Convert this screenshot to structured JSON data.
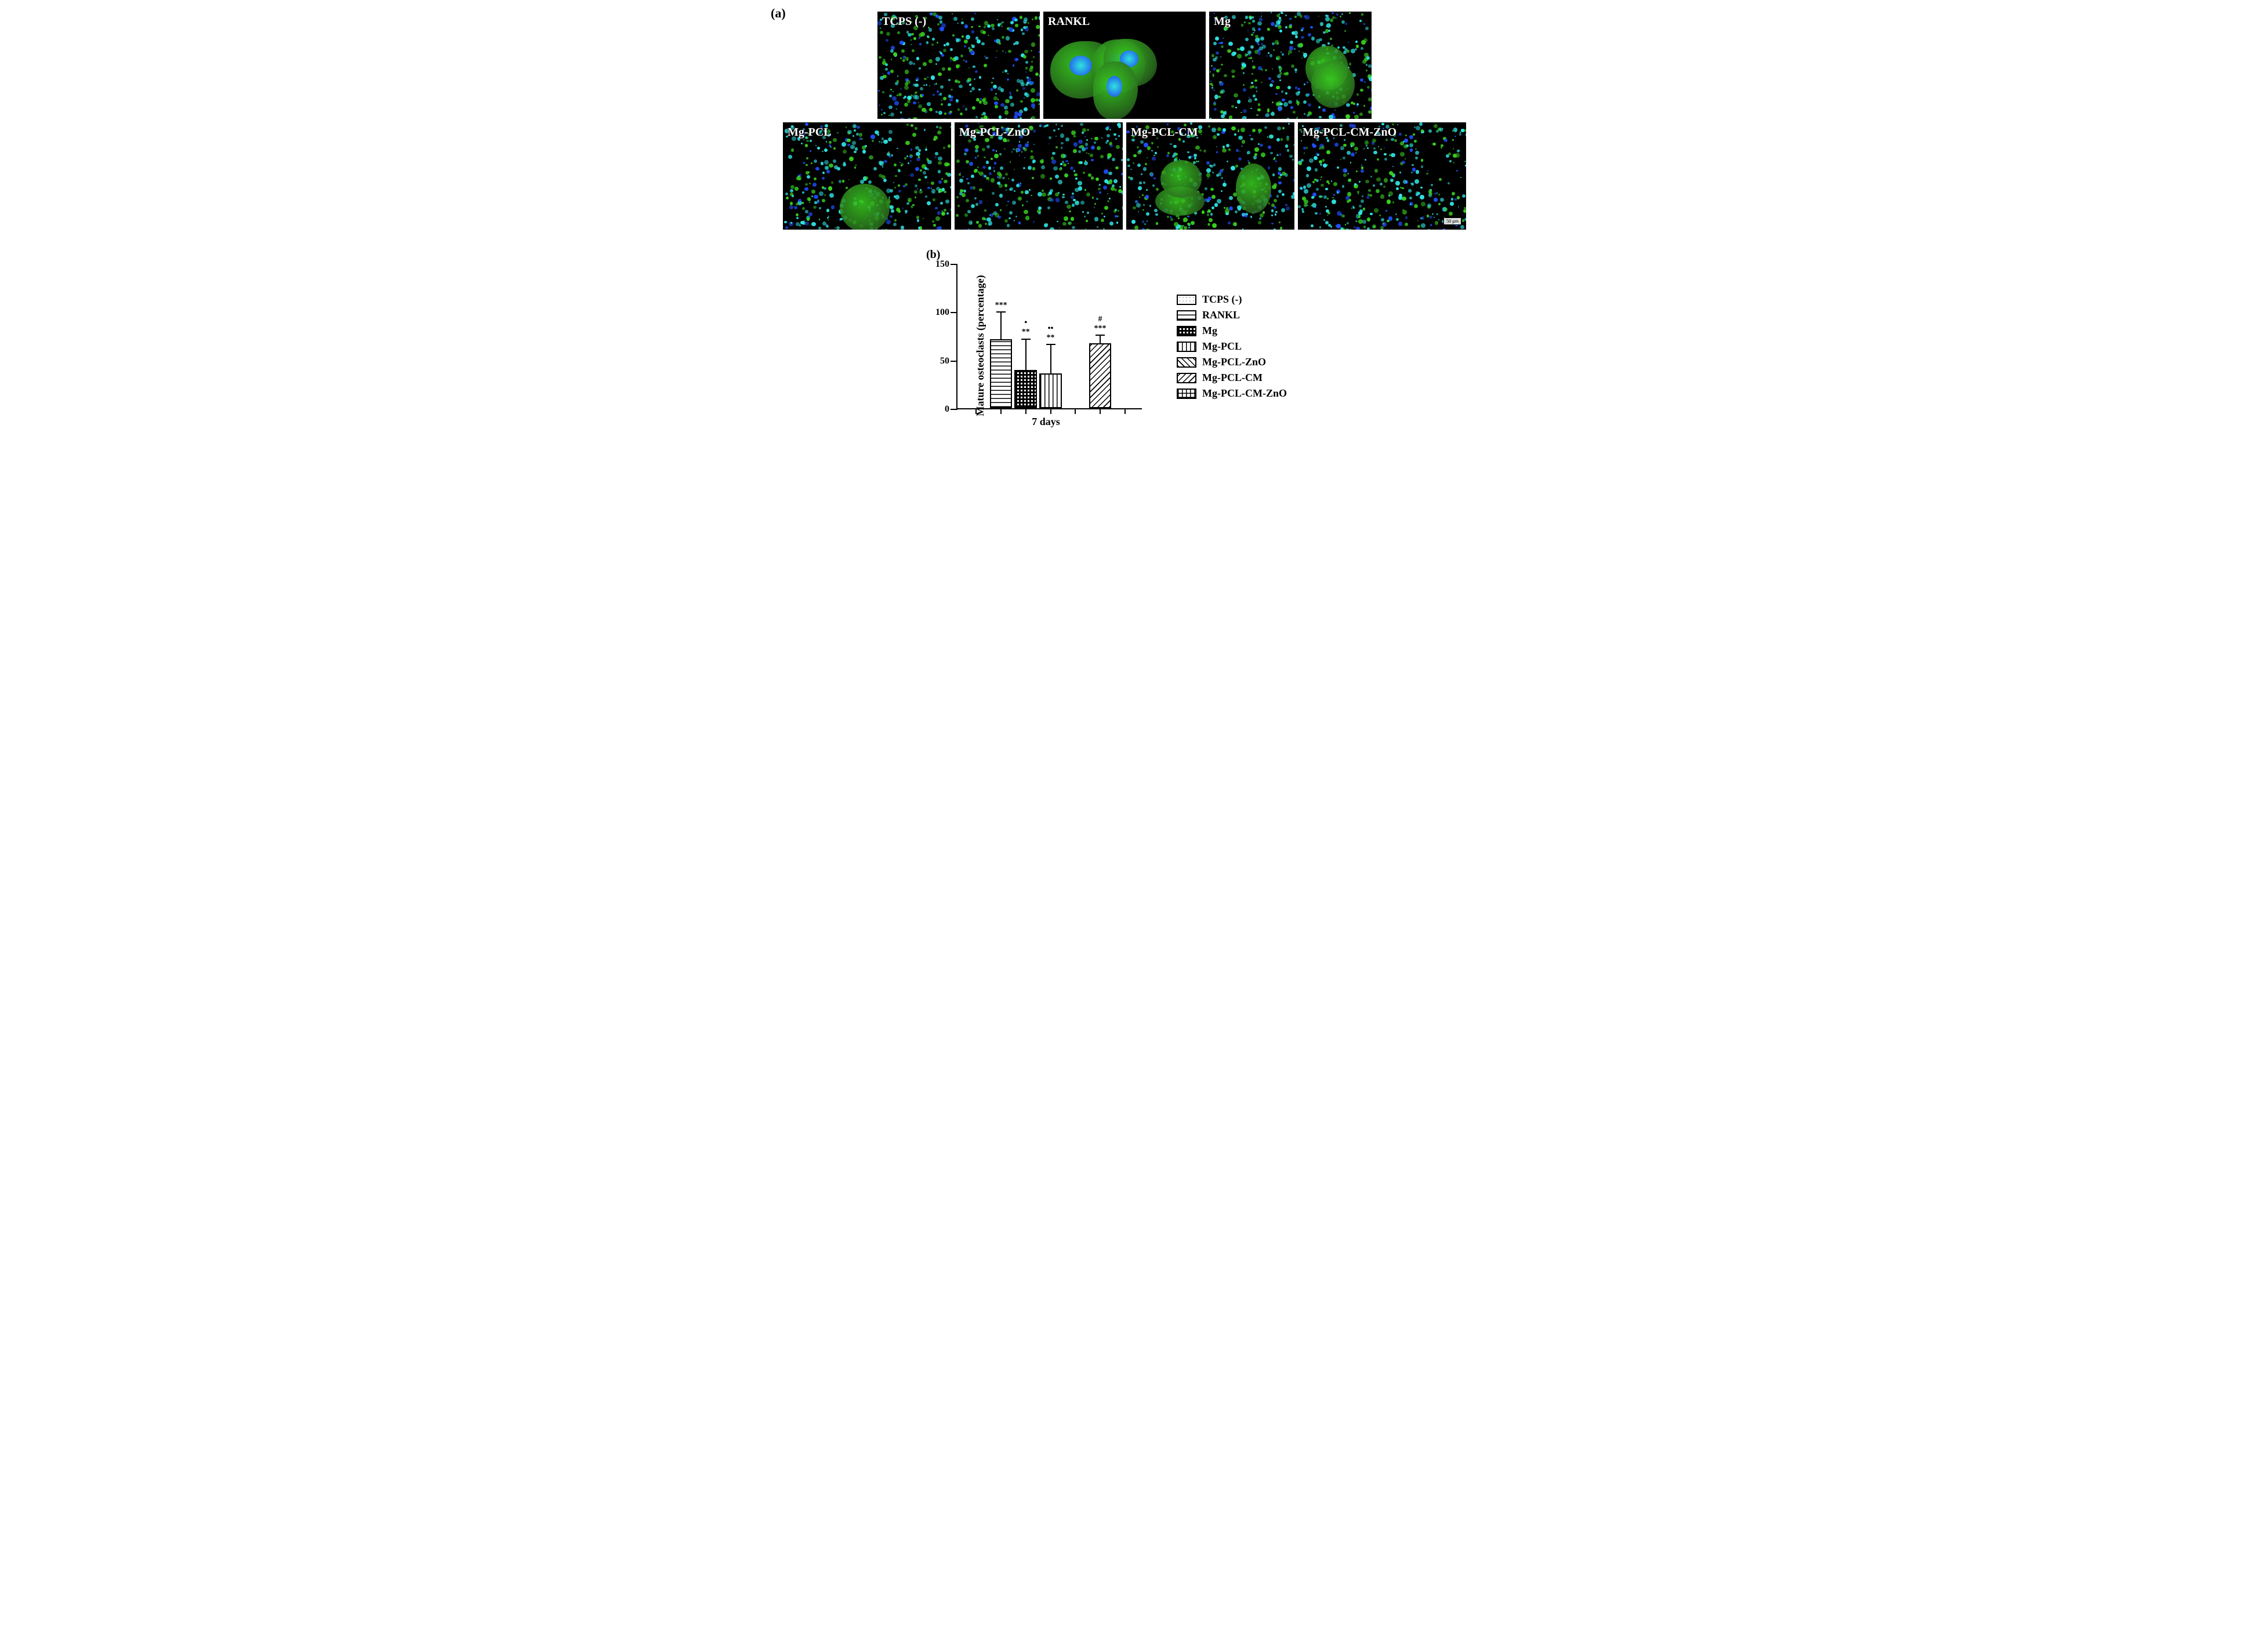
{
  "panelA": {
    "label": "(a)",
    "tiles_row1": [
      {
        "label": "TCPS (-)",
        "style": "dense"
      },
      {
        "label": "RANKL",
        "style": "sparse-big"
      },
      {
        "label": "Mg",
        "style": "dense-mix"
      }
    ],
    "tiles_row2": [
      {
        "label": "Mg-PCL",
        "style": "dense-blob"
      },
      {
        "label": "Mg-PCL-ZnO",
        "style": "dense"
      },
      {
        "label": "Mg-PCL-CM",
        "style": "dense-big"
      },
      {
        "label": "Mg-PCL-CM-ZnO",
        "style": "dense"
      }
    ],
    "scalebar_text": "50 µm",
    "cell_colors": {
      "bg": "#000000",
      "green": "#38d01f",
      "cyan": "#2fe5e5",
      "blue": "#2050ff",
      "dark_green": "#2a6a1e"
    }
  },
  "panelB": {
    "label": "(b)",
    "chart": {
      "type": "bar",
      "y_title": "Mature osteoclasts (percentage)",
      "x_title": "7 days",
      "ylim": [
        0,
        150
      ],
      "yticks": [
        0,
        50,
        100,
        150
      ],
      "ytick_step": 50,
      "categories": [
        "TCPS (-)",
        "RANKL",
        "Mg",
        "Mg-PCL",
        "Mg-PCL-ZnO",
        "Mg-PCL-CM",
        "Mg-PCL-CM-ZnO"
      ],
      "values": [
        0,
        72,
        40,
        36,
        0,
        68,
        0
      ],
      "errors": [
        0,
        28,
        32,
        30,
        0,
        8,
        0
      ],
      "sig_top": [
        "",
        "",
        "•",
        "••",
        "",
        "#",
        ""
      ],
      "sig_bottom": [
        "",
        "***",
        "**",
        "**",
        "",
        "***",
        ""
      ],
      "patterns": [
        "pat-dots",
        "pat-hstripe",
        "pat-checker",
        "pat-vstripe",
        "pat-diag",
        "pat-diag2",
        "pat-grid"
      ],
      "title_fontsize": 18,
      "label_fontsize": 16,
      "background_color": "#ffffff",
      "axis_color": "#000000",
      "bar_border_color": "#000000",
      "bar_width": 0.9
    },
    "legend": [
      {
        "label": "TCPS (-)",
        "pattern": "pat-dots"
      },
      {
        "label": "RANKL",
        "pattern": "pat-hstripe"
      },
      {
        "label": "Mg",
        "pattern": "pat-checker"
      },
      {
        "label": "Mg-PCL",
        "pattern": "pat-vstripe"
      },
      {
        "label": "Mg-PCL-ZnO",
        "pattern": "pat-diag"
      },
      {
        "label": "Mg-PCL-CM",
        "pattern": "pat-diag2"
      },
      {
        "label": "Mg-PCL-CM-ZnO",
        "pattern": "pat-grid"
      }
    ]
  }
}
